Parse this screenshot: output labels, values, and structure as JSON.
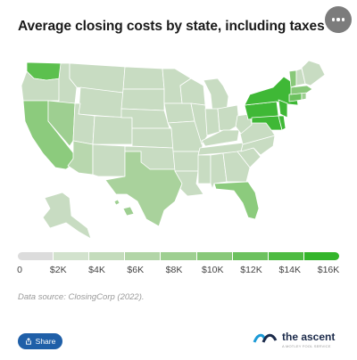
{
  "header": {
    "title": "Average closing costs by state, including taxes",
    "more_icon": "more-horizontal-icon"
  },
  "chart_data": {
    "type": "choropleth",
    "title": "Average closing costs by state, including taxes",
    "region": "United States",
    "legend_min": "0",
    "legend_max": "$16K",
    "legend_ticks": [
      "0",
      "$2K",
      "$4K",
      "$6K",
      "$8K",
      "$10K",
      "$12K",
      "$14K",
      "$16K"
    ],
    "legend_colors": [
      "#dcdcdc",
      "#d2e2cd",
      "#c4dcbc",
      "#b2d5a7",
      "#9ecf91",
      "#88c879",
      "#6cc15e",
      "#4ebb42",
      "#34b52b"
    ],
    "highlighted_states": {
      "high": [
        "Washington",
        "New York",
        "Maryland",
        "Delaware",
        "New Jersey",
        "Pennsylvania",
        "District of Columbia"
      ],
      "mid_high": [
        "Florida",
        "Connecticut",
        "Vermont",
        "Massachusetts"
      ],
      "mid": [
        "California",
        "Nevada",
        "Hawaii",
        "Texas",
        "Rhode Island"
      ]
    }
  },
  "footer": {
    "source": "Data source: ClosingCorp (2022).",
    "share_label": "Share",
    "share_icon": "share-icon",
    "brand_name": "the ascent",
    "brand_sub": "A MOTLEY FOOL SERVICE"
  },
  "colors": {
    "share_bg": "#1f5fa8",
    "brand_text": "#1b2a4a"
  }
}
